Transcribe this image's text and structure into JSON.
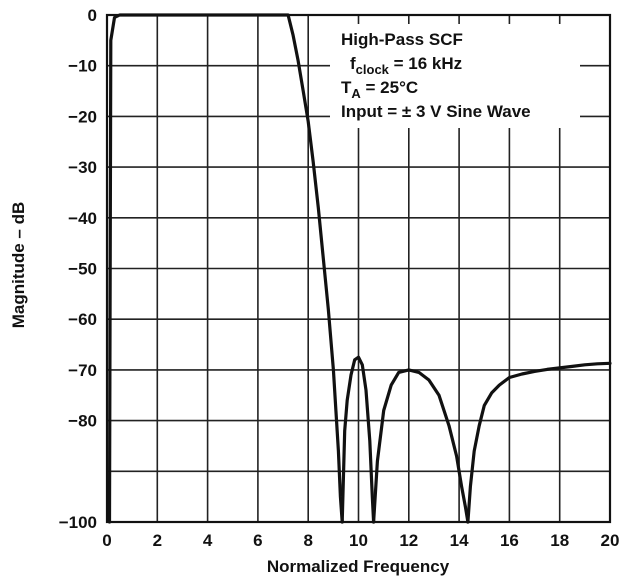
{
  "chart_data": {
    "type": "line",
    "title": "",
    "xlabel": "Normalized Frequency",
    "ylabel": "Magnitude – dB",
    "xlim": [
      0,
      20
    ],
    "ylim": [
      -100,
      0
    ],
    "grid": true,
    "xticks": [
      "0",
      "2",
      "4",
      "6",
      "8",
      "10",
      "12",
      "14",
      "16",
      "18",
      "20"
    ],
    "yticks": [
      "0",
      "−10",
      "−20",
      "−30",
      "−40",
      "−50",
      "−60",
      "−70",
      "−80",
      "−100"
    ],
    "annotation": {
      "line1": "High-Pass SCF",
      "line2_main": "f",
      "line2_sub": "clock",
      "line2_rest": " = 16 kHz",
      "line3_main": "T",
      "line3_sub": "A",
      "line3_rest": " = 25°C",
      "line4": "Input = ± 3 V Sine Wave"
    },
    "series": [
      {
        "x": [
          0.1,
          0.15,
          0.3,
          0.5,
          1,
          2,
          3,
          4,
          5,
          6,
          7,
          7.2,
          7.4,
          7.6,
          7.8,
          8.0,
          8.2,
          8.4,
          8.6,
          8.8,
          9.0,
          9.1,
          9.2,
          9.28,
          9.35
        ],
        "y": [
          -100,
          -5,
          -0.5,
          0,
          0,
          0,
          0,
          0,
          0,
          0,
          0,
          0,
          -4,
          -9,
          -15,
          -21,
          -29,
          -38,
          -48,
          -58,
          -70,
          -78,
          -86,
          -95,
          -100
        ]
      },
      {
        "x": [
          9.35,
          9.45,
          9.55,
          9.7,
          9.85,
          10.0,
          10.15,
          10.3,
          10.45,
          10.55,
          10.6
        ],
        "y": [
          -100,
          -82,
          -76,
          -71,
          -68,
          -67.5,
          -69,
          -74,
          -84,
          -95,
          -100
        ]
      },
      {
        "x": [
          10.6,
          10.75,
          11.0,
          11.3,
          11.6,
          12.0,
          12.4,
          12.8,
          13.2,
          13.6,
          13.9,
          14.1,
          14.25,
          14.35
        ],
        "y": [
          -100,
          -88,
          -78,
          -73,
          -70.5,
          -70,
          -70.5,
          -72,
          -75,
          -81,
          -87,
          -93,
          -97,
          -100
        ]
      },
      {
        "x": [
          14.35,
          14.45,
          14.6,
          14.8,
          15.0,
          15.3,
          15.6,
          16.0,
          16.5,
          17.0,
          17.5,
          18.0,
          18.5,
          19.0,
          19.5,
          20.0
        ],
        "y": [
          -100,
          -93,
          -86,
          -81,
          -77,
          -74.5,
          -73,
          -71.5,
          -70.8,
          -70.3,
          -69.9,
          -69.6,
          -69.3,
          -69.0,
          -68.8,
          -68.7
        ]
      }
    ]
  }
}
